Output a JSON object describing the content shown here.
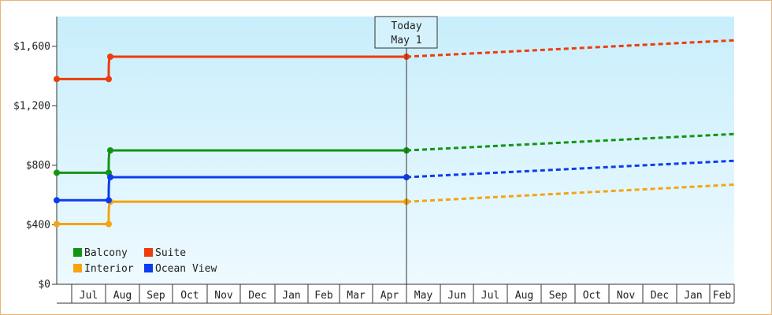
{
  "chart_data": {
    "type": "line",
    "title": "",
    "xlabel": "",
    "ylabel": "",
    "ylim": [
      0,
      1800
    ],
    "y_ticks": [
      "$0",
      "$400",
      "$800",
      "$1,200",
      "$1,600"
    ],
    "y_tick_values": [
      0,
      400,
      800,
      1200,
      1600
    ],
    "x_months": [
      "Jul",
      "Aug",
      "Sep",
      "Oct",
      "Nov",
      "Dec",
      "Jan",
      "Feb",
      "Mar",
      "Apr",
      "May",
      "Jun",
      "Jul",
      "Aug",
      "Sep",
      "Oct",
      "Nov",
      "Dec",
      "Jan",
      "Feb"
    ],
    "today_marker": {
      "line1": "Today",
      "line2": "May 1"
    },
    "legend_placement": "bottom-left",
    "grid": false,
    "series": [
      {
        "name": "Balcony",
        "color": "#149414",
        "points": [
          [
            "Jun 15",
            750
          ],
          [
            "Jul 15",
            750
          ],
          [
            "Jul 31",
            900
          ],
          [
            "May 1",
            900
          ]
        ],
        "projection": [
          [
            "May 1",
            900
          ],
          [
            "Mar 1",
            1010
          ]
        ]
      },
      {
        "name": "Suite",
        "color": "#ee3c0c",
        "points": [
          [
            "Jun 15",
            1380
          ],
          [
            "Jul 15",
            1380
          ],
          [
            "Jul 31",
            1530
          ],
          [
            "May 1",
            1530
          ]
        ],
        "projection": [
          [
            "May 1",
            1530
          ],
          [
            "Mar 1",
            1640
          ]
        ]
      },
      {
        "name": "Interior",
        "color": "#f5a410",
        "points": [
          [
            "Jun 15",
            405
          ],
          [
            "Jul 15",
            405
          ],
          [
            "Jul 31",
            555
          ],
          [
            "May 1",
            555
          ]
        ],
        "projection": [
          [
            "May 1",
            555
          ],
          [
            "Mar 1",
            670
          ]
        ]
      },
      {
        "name": "Ocean View",
        "color": "#0c3cf0",
        "points": [
          [
            "Jun 15",
            565
          ],
          [
            "Jul 15",
            565
          ],
          [
            "Jul 31",
            720
          ],
          [
            "May 1",
            720
          ]
        ],
        "projection": [
          [
            "May 1",
            720
          ],
          [
            "Mar 1",
            830
          ]
        ]
      }
    ]
  }
}
